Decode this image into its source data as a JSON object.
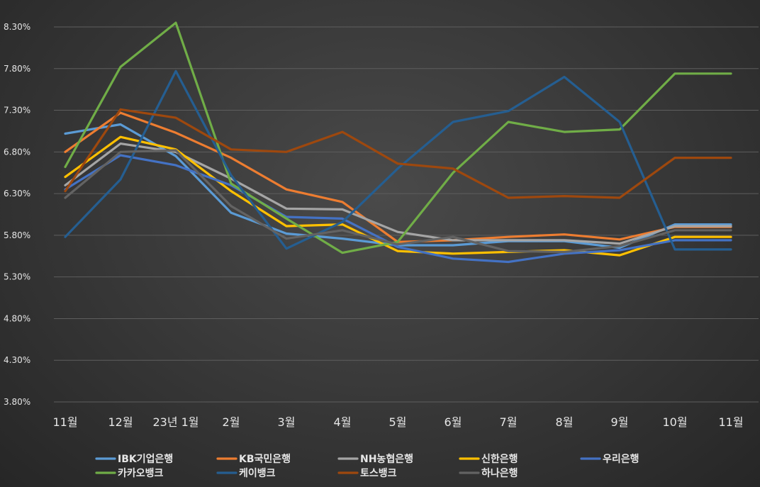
{
  "chart_data": {
    "type": "line",
    "title": "",
    "xlabel": "",
    "ylabel": "",
    "categories": [
      "11월",
      "12월",
      "23년 1월",
      "2월",
      "3월",
      "4월",
      "5월",
      "6월",
      "7월",
      "8월",
      "9월",
      "10월",
      "11월"
    ],
    "y_ticks": [
      "3.80%",
      "4.30%",
      "4.80%",
      "5.30%",
      "5.80%",
      "6.30%",
      "6.80%",
      "7.30%",
      "7.80%",
      "8.30%"
    ],
    "ylim": [
      3.8,
      8.3
    ],
    "grid": true,
    "legend_position": "bottom",
    "series": [
      {
        "name": "IBK기업은행",
        "color": "#5b9bd5",
        "values": [
          7.02,
          7.13,
          6.75,
          6.07,
          5.82,
          5.76,
          5.68,
          5.68,
          5.73,
          5.73,
          5.65,
          5.93,
          5.93
        ]
      },
      {
        "name": "KB국민은행",
        "color": "#ed7d31",
        "values": [
          6.8,
          7.27,
          7.03,
          6.73,
          6.35,
          6.2,
          5.72,
          5.74,
          5.78,
          5.81,
          5.75,
          5.9,
          5.9
        ]
      },
      {
        "name": "NH농협은행",
        "color": "#a5a5a5",
        "values": [
          6.4,
          6.9,
          6.8,
          6.48,
          6.12,
          6.11,
          5.84,
          5.74,
          5.74,
          5.74,
          5.7,
          5.91,
          5.91
        ]
      },
      {
        "name": "신한은행",
        "color": "#ffc000",
        "values": [
          6.5,
          6.98,
          6.83,
          6.33,
          5.91,
          5.93,
          5.61,
          5.58,
          5.6,
          5.62,
          5.56,
          5.78,
          5.78
        ]
      },
      {
        "name": "우리은행",
        "color": "#4472c4",
        "values": [
          6.35,
          6.76,
          6.64,
          6.4,
          6.02,
          6.0,
          5.66,
          5.52,
          5.48,
          5.58,
          5.62,
          5.74,
          5.74
        ]
      },
      {
        "name": "카카오뱅크",
        "color": "#70ad47",
        "values": [
          6.62,
          7.82,
          8.35,
          6.42,
          6.0,
          5.59,
          5.72,
          6.55,
          7.16,
          7.04,
          7.07,
          7.74,
          7.74
        ]
      },
      {
        "name": "케이뱅크",
        "color": "#255e91",
        "values": [
          5.78,
          6.47,
          7.77,
          6.52,
          5.64,
          5.96,
          6.6,
          7.16,
          7.29,
          7.7,
          7.16,
          5.63,
          5.63
        ]
      },
      {
        "name": "토스뱅크",
        "color": "#9e480e",
        "values": [
          6.33,
          7.31,
          7.21,
          6.83,
          6.8,
          7.04,
          6.66,
          6.6,
          6.25,
          6.27,
          6.25,
          6.73,
          6.73
        ]
      },
      {
        "name": "하나은행",
        "color": "#636363",
        "values": [
          6.25,
          6.8,
          6.82,
          6.15,
          5.76,
          5.86,
          5.69,
          5.78,
          5.61,
          5.6,
          5.67,
          5.86,
          5.86
        ]
      }
    ]
  }
}
